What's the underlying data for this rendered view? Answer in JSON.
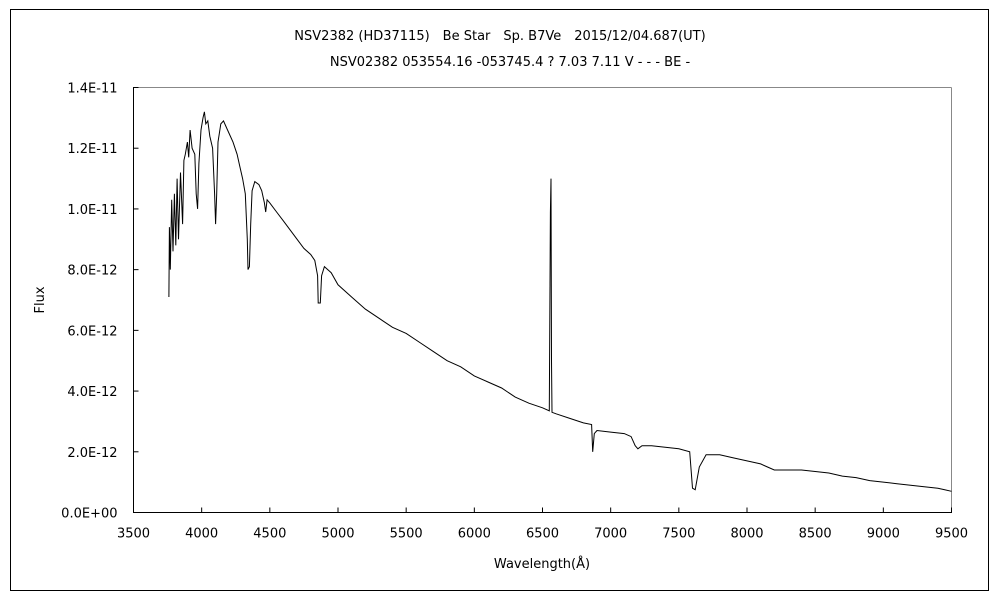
{
  "chart_data": {
    "type": "line",
    "title": "NSV2382 (HD37115)　Be Star　Sp. B7Ve　2015/12/04.687(UT)",
    "subtitle": "NSV02382 053554.16 -053745.4 ? 7.03 7.11 V - - - BE -",
    "xlabel": "Wavelength(Å)",
    "ylabel": "Flux",
    "xlim": [
      3500,
      9500
    ],
    "ylim": [
      0,
      1.4e-11
    ],
    "grid": false,
    "x_ticks": [
      3500,
      4000,
      4500,
      5000,
      5500,
      6000,
      6500,
      7000,
      7500,
      8000,
      8500,
      9000,
      9500
    ],
    "x_tick_labels": [
      "3500",
      "4000",
      "4500",
      "5000",
      "5500",
      "6000",
      "6500",
      "7000",
      "7500",
      "8000",
      "8500",
      "9000",
      "9500"
    ],
    "y_ticks": [
      0,
      2e-12,
      4e-12,
      6e-12,
      8e-12,
      1e-11,
      1.2e-11,
      1.4e-11
    ],
    "y_tick_labels": [
      "0.0E+00",
      "2.0E-12",
      "4.0E-12",
      "6.0E-12",
      "8.0E-12",
      "1.0E-11",
      "1.2E-11",
      "1.4E-11"
    ],
    "y_unit_scale": 1e-12,
    "series": [
      {
        "name": "Flux",
        "color": "#000000",
        "points_wavelength_flux_e12": [
          [
            3760,
            7.1
          ],
          [
            3763,
            9.4
          ],
          [
            3770,
            8.0
          ],
          [
            3780,
            10.3
          ],
          [
            3790,
            8.6
          ],
          [
            3800,
            10.5
          ],
          [
            3810,
            8.8
          ],
          [
            3820,
            11.0
          ],
          [
            3830,
            9.0
          ],
          [
            3845,
            11.2
          ],
          [
            3860,
            9.5
          ],
          [
            3870,
            11.6
          ],
          [
            3880,
            11.8
          ],
          [
            3895,
            12.2
          ],
          [
            3905,
            11.7
          ],
          [
            3915,
            12.6
          ],
          [
            3930,
            12.0
          ],
          [
            3950,
            11.8
          ],
          [
            3960,
            10.5
          ],
          [
            3970,
            10.0
          ],
          [
            3980,
            11.5
          ],
          [
            3995,
            12.6
          ],
          [
            4010,
            13.0
          ],
          [
            4020,
            13.2
          ],
          [
            4030,
            12.8
          ],
          [
            4045,
            12.9
          ],
          [
            4060,
            12.4
          ],
          [
            4080,
            12.0
          ],
          [
            4095,
            10.5
          ],
          [
            4102,
            9.5
          ],
          [
            4110,
            10.5
          ],
          [
            4120,
            12.2
          ],
          [
            4140,
            12.8
          ],
          [
            4160,
            12.9
          ],
          [
            4180,
            12.7
          ],
          [
            4200,
            12.5
          ],
          [
            4230,
            12.2
          ],
          [
            4260,
            11.8
          ],
          [
            4280,
            11.4
          ],
          [
            4300,
            11.0
          ],
          [
            4320,
            10.5
          ],
          [
            4335,
            9.0
          ],
          [
            4340,
            8.0
          ],
          [
            4350,
            8.1
          ],
          [
            4360,
            9.5
          ],
          [
            4370,
            10.6
          ],
          [
            4390,
            10.9
          ],
          [
            4420,
            10.8
          ],
          [
            4440,
            10.6
          ],
          [
            4460,
            10.2
          ],
          [
            4470,
            9.9
          ],
          [
            4480,
            10.3
          ],
          [
            4500,
            10.2
          ],
          [
            4550,
            9.9
          ],
          [
            4600,
            9.6
          ],
          [
            4650,
            9.3
          ],
          [
            4700,
            9.0
          ],
          [
            4750,
            8.7
          ],
          [
            4800,
            8.5
          ],
          [
            4830,
            8.3
          ],
          [
            4850,
            7.8
          ],
          [
            4855,
            6.9
          ],
          [
            4870,
            6.9
          ],
          [
            4880,
            7.8
          ],
          [
            4900,
            8.1
          ],
          [
            4950,
            7.9
          ],
          [
            5000,
            7.5
          ],
          [
            5100,
            7.1
          ],
          [
            5200,
            6.7
          ],
          [
            5300,
            6.4
          ],
          [
            5400,
            6.1
          ],
          [
            5500,
            5.9
          ],
          [
            5600,
            5.6
          ],
          [
            5700,
            5.3
          ],
          [
            5800,
            5.0
          ],
          [
            5900,
            4.8
          ],
          [
            6000,
            4.5
          ],
          [
            6100,
            4.3
          ],
          [
            6200,
            4.1
          ],
          [
            6300,
            3.8
          ],
          [
            6400,
            3.6
          ],
          [
            6500,
            3.45
          ],
          [
            6550,
            3.35
          ],
          [
            6558,
            9.9
          ],
          [
            6562,
            11.0
          ],
          [
            6566,
            5.0
          ],
          [
            6570,
            3.3
          ],
          [
            6600,
            3.25
          ],
          [
            6700,
            3.1
          ],
          [
            6800,
            2.95
          ],
          [
            6860,
            2.9
          ],
          [
            6868,
            2.0
          ],
          [
            6880,
            2.6
          ],
          [
            6900,
            2.7
          ],
          [
            7000,
            2.65
          ],
          [
            7100,
            2.6
          ],
          [
            7150,
            2.5
          ],
          [
            7180,
            2.2
          ],
          [
            7200,
            2.1
          ],
          [
            7230,
            2.2
          ],
          [
            7300,
            2.2
          ],
          [
            7400,
            2.15
          ],
          [
            7500,
            2.1
          ],
          [
            7580,
            2.0
          ],
          [
            7600,
            0.8
          ],
          [
            7620,
            0.75
          ],
          [
            7650,
            1.5
          ],
          [
            7700,
            1.9
          ],
          [
            7800,
            1.9
          ],
          [
            7900,
            1.8
          ],
          [
            8000,
            1.7
          ],
          [
            8100,
            1.6
          ],
          [
            8150,
            1.5
          ],
          [
            8200,
            1.4
          ],
          [
            8300,
            1.4
          ],
          [
            8400,
            1.4
          ],
          [
            8500,
            1.35
          ],
          [
            8600,
            1.3
          ],
          [
            8700,
            1.2
          ],
          [
            8800,
            1.15
          ],
          [
            8900,
            1.05
          ],
          [
            9000,
            1.0
          ],
          [
            9100,
            0.95
          ],
          [
            9200,
            0.9
          ],
          [
            9300,
            0.85
          ],
          [
            9400,
            0.8
          ],
          [
            9450,
            0.75
          ],
          [
            9500,
            0.7
          ]
        ]
      }
    ]
  }
}
